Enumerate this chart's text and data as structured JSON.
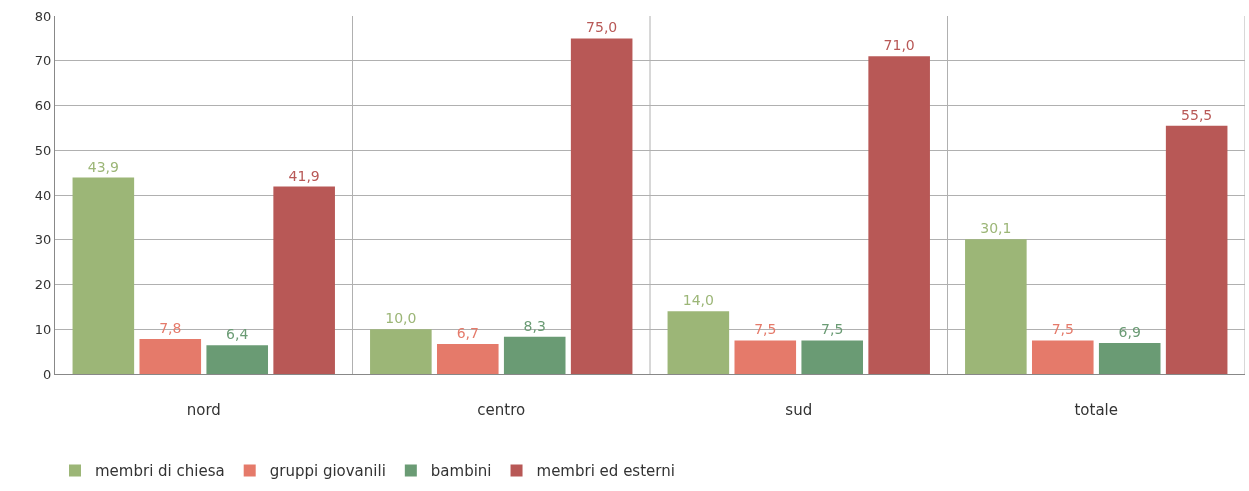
{
  "chart_data": {
    "type": "bar",
    "categories": [
      "nord",
      "centro",
      "sud",
      "totale"
    ],
    "series": [
      {
        "name": "membri di chiesa",
        "color": "#9cb677",
        "values": [
          43.9,
          10.0,
          14.0,
          30.1
        ],
        "value_labels": [
          "43,9",
          "10,0",
          "14,0",
          "30,1"
        ]
      },
      {
        "name": "gruppi giovanili",
        "color": "#e57a6a",
        "values": [
          7.8,
          6.7,
          7.5,
          7.5
        ],
        "value_labels": [
          "7,8",
          "6,7",
          "7,5",
          "7,5"
        ]
      },
      {
        "name": "bambini",
        "color": "#6a9b74",
        "values": [
          6.4,
          8.3,
          7.5,
          6.9
        ],
        "value_labels": [
          "6,4",
          "8,3",
          "7,5",
          "6,9"
        ]
      },
      {
        "name": "membri ed esterni",
        "color": "#b85856",
        "values": [
          41.9,
          75.0,
          71.0,
          55.5
        ],
        "value_labels": [
          "41,9",
          "75,0",
          "71,0",
          "55,5"
        ]
      }
    ],
    "ylim": [
      0,
      80
    ],
    "yticks": [
      0,
      10,
      20,
      30,
      40,
      50,
      60,
      70,
      80
    ],
    "grid": true,
    "legend": "bottom left"
  }
}
